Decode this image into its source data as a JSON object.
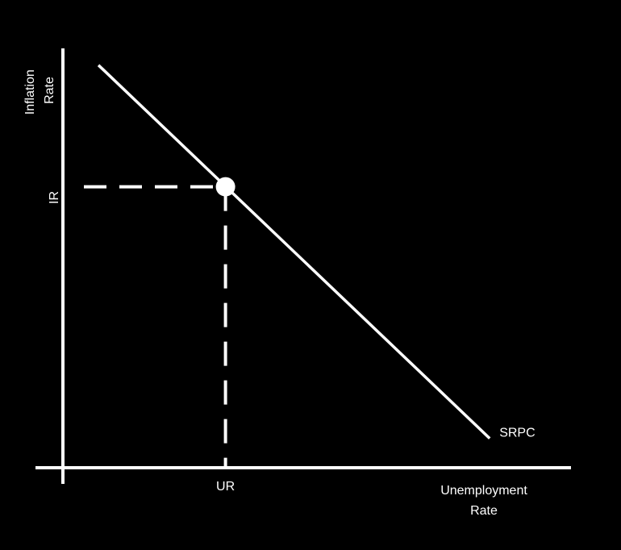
{
  "chart_data": {
    "type": "line",
    "title": "",
    "xlabel": [
      "Unemployment",
      "Rate"
    ],
    "ylabel": [
      "Inflation",
      "Rate"
    ],
    "xlim": [
      0,
      10
    ],
    "ylim": [
      0,
      10
    ],
    "grid": false,
    "colors": {
      "background": "#000000",
      "foreground": "#ffffff"
    },
    "series": [
      {
        "name": "SRPC",
        "x": [
          0.7,
          8.4
        ],
        "y": [
          9.6,
          0.7
        ],
        "label_text": "SRPC"
      }
    ],
    "equilibrium": {
      "x": 3.2,
      "y": 6.7,
      "x_label": "UR",
      "y_label": "IR"
    }
  }
}
